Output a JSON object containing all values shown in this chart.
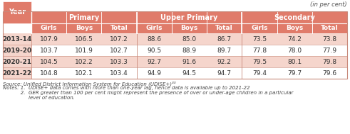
{
  "title_note": "(in per cent)",
  "header_bg": "#E07B6A",
  "header_text": "#FFFFFF",
  "row_bg_light": "#F5D5CC",
  "row_bg_white": "#FFFFFF",
  "border_color": "#C8897A",
  "data_text_color": "#333333",
  "col_groups": [
    {
      "label": "Primary",
      "span": 3
    },
    {
      "label": "Upper Primary",
      "span": 3
    },
    {
      "label": "Secondary",
      "span": 3
    }
  ],
  "sub_labels": [
    "Girls",
    "Boys",
    "Total",
    "Girls",
    "Boys",
    "Total",
    "Girls",
    "Boys",
    "Total"
  ],
  "rows": [
    {
      "year": "2013-14",
      "data": [
        "107.9",
        "106.5",
        "107.2",
        "88.6",
        "85.0",
        "86.7",
        "73.5",
        "74.2",
        "73.8"
      ]
    },
    {
      "year": "2019-20",
      "data": [
        "103.7",
        "101.9",
        "102.7",
        "90.5",
        "88.9",
        "89.7",
        "77.8",
        "78.0",
        "77.9"
      ]
    },
    {
      "year": "2020-21",
      "data": [
        "104.5",
        "102.2",
        "103.3",
        "92.7",
        "91.6",
        "92.2",
        "79.5",
        "80.1",
        "79.8"
      ]
    },
    {
      "year": "2021-22",
      "data": [
        "104.8",
        "102.1",
        "103.4",
        "94.9",
        "94.5",
        "94.7",
        "79.4",
        "79.7",
        "79.6"
      ]
    }
  ],
  "source_line": "Source: Unified District Information System for Education (UDISE+)³³",
  "note_line1": "Notes: 1.  UDISE+ data comes with more than one-year lag, hence data is available up to 2021-22",
  "note_line2": "           2.  GER greater than 100 per cent might represent the presence of over or under-age children in a particular",
  "note_line3": "                level of education.",
  "fig_w": 4.91,
  "fig_h": 1.89,
  "dpi": 100
}
